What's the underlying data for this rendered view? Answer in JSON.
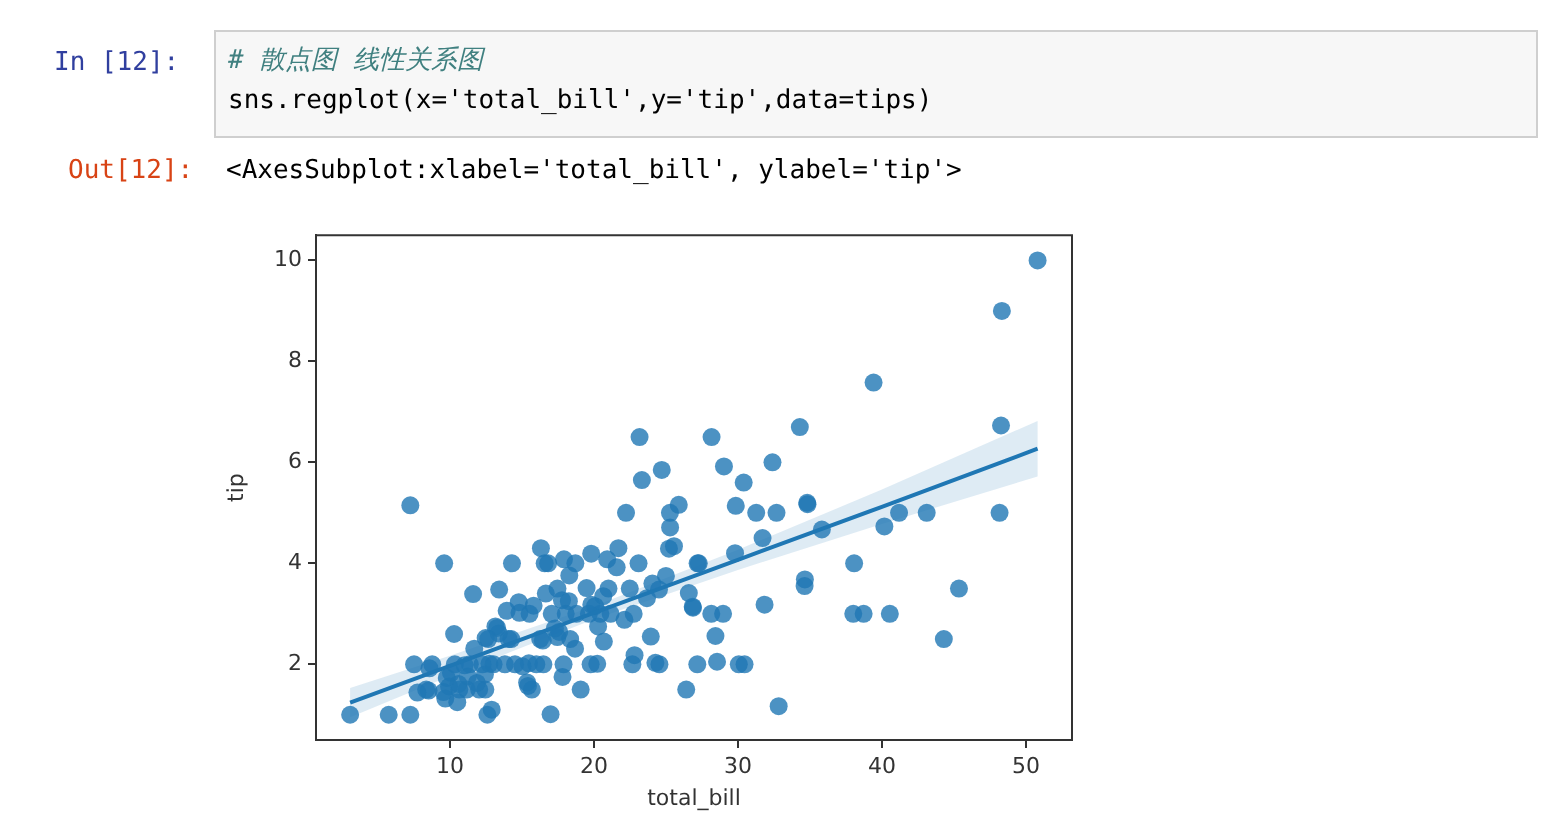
{
  "chart_data": {
    "type": "scatter",
    "xlabel": "total_bill",
    "ylabel": "tip",
    "xlim": [
      0.7,
      53.2
    ],
    "ylim": [
      0.5,
      10.5
    ],
    "xticks": [
      10,
      20,
      30,
      40,
      50
    ],
    "yticks": [
      2,
      4,
      6,
      8,
      10
    ],
    "grid": false,
    "legend": false,
    "marker": "circle",
    "annotations": [
      "In [12]:",
      "# 散点图 线性关系图",
      "sns.regplot(x='total_bill',y='tip',data=tips)",
      "Out[12]:",
      "<AxesSubplot:xlabel='total_bill', ylabel='tip'>"
    ],
    "series": [
      {
        "color": "#1f77b4",
        "x": [
          50.81,
          48.33,
          48.27,
          48.17,
          45.35,
          44.3,
          43.11,
          41.19,
          40.55,
          40.17,
          39.42,
          38.73,
          38.07,
          38.01,
          35.83,
          34.83,
          34.81,
          34.65,
          34.63,
          34.3,
          32.83,
          32.68,
          32.4,
          31.85,
          31.71,
          31.27,
          30.46,
          30.4,
          30.06,
          29.85,
          29.8,
          29.03,
          28.97,
          28.55,
          28.44,
          28.17,
          28.15,
          27.28,
          27.2,
          27.18,
          26.88,
          26.86,
          26.59,
          26.41,
          25.89,
          25.56,
          25.29,
          25.28,
          25.21,
          25.0,
          24.71,
          24.55,
          24.52,
          24.27,
          24.06,
          23.95,
          23.68,
          23.33,
          23.17,
          23.1,
          22.82,
          22.76,
          22.67,
          22.49,
          22.23,
          22.12,
          21.7,
          21.58,
          21.16,
          21.01,
          20.92,
          20.69,
          20.65,
          20.45,
          20.29,
          20.23,
          20.08,
          19.82,
          19.81,
          19.77,
          19.65,
          19.49,
          19.08,
          18.78,
          18.71,
          18.69,
          18.35,
          18.29,
          18.26,
          18.04,
          17.92,
          17.89,
          17.82,
          17.78,
          17.59,
          17.47,
          17.46,
          17.29,
          17.07,
          16.99,
          16.82,
          16.66,
          16.58,
          16.49,
          16.45,
          16.32,
          16.27,
          16.0,
          15.81,
          15.69,
          15.53,
          15.48,
          15.42,
          15.36,
          15.04,
          14.83,
          14.78,
          14.52,
          14.31,
          14.26,
          14.07,
          13.94,
          13.81,
          13.42,
          13.39,
          13.28,
          13.16,
          13.03,
          12.9,
          12.74,
          12.66,
          12.6,
          12.48,
          12.46,
          12.43,
          12.26,
          12.03,
          11.87,
          11.69,
          11.61,
          11.38,
          11.24,
          11.17,
          11.02,
          10.65,
          10.59,
          10.51,
          10.34,
          10.29,
          10.07,
          9.94,
          9.78,
          9.68,
          9.6,
          9.55,
          8.77,
          8.58,
          8.52,
          8.35,
          7.74,
          7.51,
          7.25,
          7.25,
          5.75,
          3.07
        ],
        "values": [
          10,
          9,
          6.73,
          5,
          3.5,
          2.5,
          5,
          5,
          3,
          4.73,
          7.58,
          3,
          4,
          3,
          4.67,
          5.17,
          5.2,
          3.68,
          3.55,
          6.7,
          1.17,
          5,
          6,
          3.18,
          4.5,
          5,
          2,
          5.6,
          2,
          5.14,
          4.2,
          5.92,
          3,
          2.05,
          2.56,
          6.5,
          3,
          4,
          4,
          2,
          3.12,
          3.14,
          3.41,
          1.5,
          5.16,
          4.34,
          4.71,
          5,
          4.29,
          3.75,
          5.85,
          2,
          3.48,
          2.03,
          3.6,
          2.55,
          3.31,
          5.65,
          6.5,
          4,
          2.18,
          3,
          2,
          3.5,
          5,
          2.88,
          4.3,
          3.92,
          3,
          3.5,
          4.08,
          2.45,
          3.35,
          3,
          2.75,
          2.01,
          3.15,
          3.18,
          4.19,
          2,
          3,
          3.51,
          1.5,
          3,
          4,
          2.31,
          2.5,
          3.76,
          3.25,
          3,
          4.08,
          2,
          1.75,
          3.27,
          2.64,
          3.5,
          2.54,
          2.71,
          3,
          1.01,
          4,
          3.4,
          4,
          2,
          2.47,
          4.3,
          2.5,
          2,
          3.16,
          1.5,
          3,
          2.02,
          1.57,
          1.64,
          1.96,
          3.02,
          3.23,
          2,
          4,
          2.5,
          2.5,
          3.06,
          2,
          3.48,
          2.61,
          2.72,
          2.75,
          2,
          1.1,
          2.01,
          2.5,
          1,
          2.52,
          1.5,
          1.8,
          2,
          1.5,
          1.63,
          2.31,
          3.39,
          2,
          1.76,
          1.5,
          1.98,
          1.5,
          1.61,
          1.25,
          2,
          2.6,
          1.83,
          1.56,
          1.73,
          1.32,
          4,
          1.45,
          2,
          1.92,
          1.48,
          1.5,
          1.44,
          2,
          5.15,
          1,
          1,
          1
        ]
      },
      {
        "type": "line",
        "color": "#1f77b4",
        "marker": "none",
        "line_style": "solid",
        "x": [
          3.07,
          10,
          20,
          30,
          40,
          50.81
        ],
        "values": [
          1.24,
          1.97,
          3.02,
          4.07,
          5.12,
          6.27
        ],
        "lower": [
          0.95,
          1.77,
          2.89,
          3.87,
          4.78,
          5.72
        ],
        "upper": [
          1.53,
          2.17,
          3.15,
          4.27,
          5.46,
          6.82
        ]
      }
    ]
  }
}
